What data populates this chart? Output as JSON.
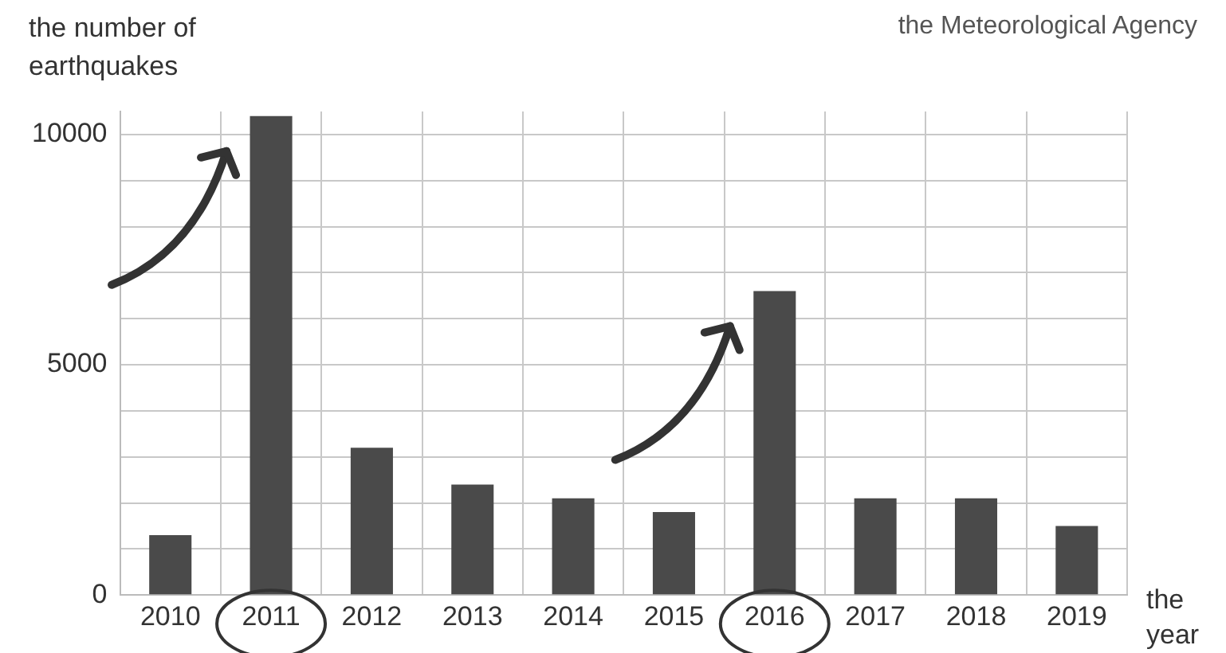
{
  "chart_data": {
    "type": "bar",
    "ylabel": "the number of earthquakes",
    "xlabel": "the year",
    "annotations": [
      "the Meteorological Agency"
    ],
    "categories": [
      "2010",
      "2011",
      "2012",
      "2013",
      "2014",
      "2015",
      "2016",
      "2017",
      "2018",
      "2019"
    ],
    "values": [
      1300,
      10400,
      3200,
      2400,
      2100,
      1800,
      6600,
      2100,
      2100,
      1500
    ],
    "color": "#4a4a4a",
    "ylim": [
      0,
      10500
    ],
    "yticks": [
      0,
      {
        "value": 1000,
        "label": null
      },
      {
        "value": 2000,
        "label": null
      },
      {
        "value": 3000,
        "label": null
      },
      {
        "value": 4000,
        "label": null
      },
      5000,
      {
        "value": 6000,
        "label": null
      },
      {
        "value": 7000,
        "label": null
      },
      {
        "value": 8000,
        "label": null
      },
      {
        "value": 9000,
        "label": null
      },
      10000
    ],
    "grid": true,
    "legend": false
  }
}
